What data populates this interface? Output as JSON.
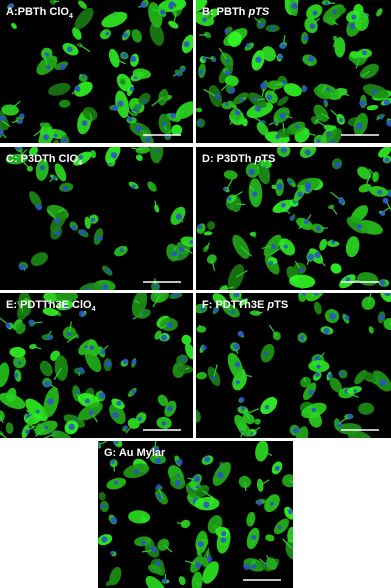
{
  "panels": [
    {
      "label": [
        {
          "text": "A:PBTh ClO",
          "style": "normal"
        },
        {
          "text": "4",
          "style": "sub"
        }
      ]
    },
    {
      "label": [
        {
          "text": "B: PBTh ",
          "style": "normal"
        },
        {
          "text": "pTS",
          "style": "italic"
        }
      ]
    },
    {
      "label": [
        {
          "text": "C: P3DTh ClO",
          "style": "normal"
        },
        {
          "text": "4",
          "style": "sub"
        }
      ]
    },
    {
      "label": [
        {
          "text": "D: P3DTh ",
          "style": "normal"
        },
        {
          "text": "p",
          "style": "italic"
        },
        {
          "text": "TS",
          "style": "normal"
        }
      ]
    },
    {
      "label": [
        {
          "text": "E: PDTTh3E ClO",
          "style": "normal"
        },
        {
          "text": "4",
          "style": "sub"
        }
      ]
    },
    {
      "label": [
        {
          "text": "F: PDTTh3E ",
          "style": "normal"
        },
        {
          "text": "p",
          "style": "italic"
        },
        {
          "text": "TS",
          "style": "normal"
        }
      ]
    },
    {
      "label": [
        {
          "text": "G: Au Mylar",
          "style": "normal"
        }
      ]
    }
  ]
}
